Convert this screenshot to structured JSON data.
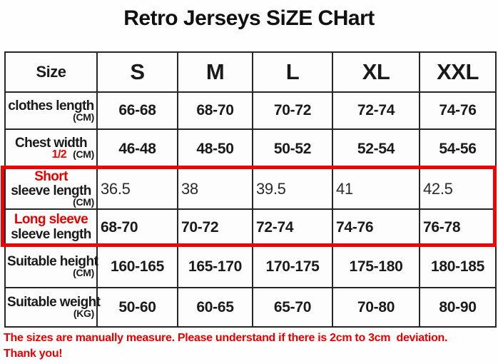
{
  "title": "Retro Jerseys SiZE CHart",
  "colors": {
    "accent_red": "#e60000",
    "highlight_border": "#ee0404",
    "text_black": "#1a1a1a",
    "table_line": "#262626",
    "background": "#fefefe"
  },
  "table": {
    "header": {
      "size": "Size",
      "cols": [
        "S",
        "M",
        "L",
        "XL",
        "XXL"
      ]
    },
    "rows": [
      {
        "label": "clothes length",
        "unit": "(CM)",
        "values": [
          "66-68",
          "68-70",
          "70-72",
          "72-74",
          "74-76"
        ]
      },
      {
        "label": "Chest width",
        "fraction": "1/2",
        "unit": "(CM)",
        "values": [
          "46-48",
          "48-50",
          "50-52",
          "52-54",
          "54-56"
        ]
      },
      {
        "red_label": "Short",
        "label": "sleeve length",
        "unit": "(CM)",
        "values": [
          "36.5",
          "38",
          "39.5",
          "41",
          "42.5"
        ]
      },
      {
        "red_label": "Long sleeve",
        "label": "sleeve length",
        "values": [
          "68-70",
          "70-72",
          "72-74",
          "74-76",
          "76-78"
        ]
      },
      {
        "label": "Suitable height",
        "unit": "(CM)",
        "values": [
          "160-165",
          "165-170",
          "170-175",
          "175-180",
          "180-185"
        ]
      },
      {
        "label": "Suitable weight",
        "unit": "(KG)",
        "values": [
          "50-60",
          "60-65",
          "65-70",
          "70-80",
          "80-90"
        ]
      }
    ]
  },
  "footer": {
    "line1": "The sizes are manually measure. Please understand if there is 2cm to 3cm  deviation.",
    "line2": "Thank you!"
  },
  "chart_data": {
    "type": "table",
    "title": "Retro Jerseys SiZE CHart",
    "columns": [
      "Size",
      "S",
      "M",
      "L",
      "XL",
      "XXL"
    ],
    "rows": [
      [
        "clothes length (CM)",
        "66-68",
        "68-70",
        "70-72",
        "72-74",
        "74-76"
      ],
      [
        "Chest width 1/2 (CM)",
        "46-48",
        "48-50",
        "50-52",
        "52-54",
        "54-56"
      ],
      [
        "Short sleeve length (CM)",
        "36.5",
        "38",
        "39.5",
        "41",
        "42.5"
      ],
      [
        "Long sleeve sleeve length",
        "68-70",
        "70-72",
        "72-74",
        "74-76",
        "76-78"
      ],
      [
        "Suitable height (CM)",
        "160-165",
        "165-170",
        "170-175",
        "175-180",
        "180-185"
      ],
      [
        "Suitable weight (KG)",
        "50-60",
        "60-65",
        "65-70",
        "70-80",
        "80-90"
      ]
    ],
    "highlighted_rows": [
      "Short sleeve length (CM)",
      "Long sleeve sleeve length"
    ],
    "note": "The sizes are manually measure. Please understand if there is 2cm to 3cm  deviation. Thank you!"
  }
}
